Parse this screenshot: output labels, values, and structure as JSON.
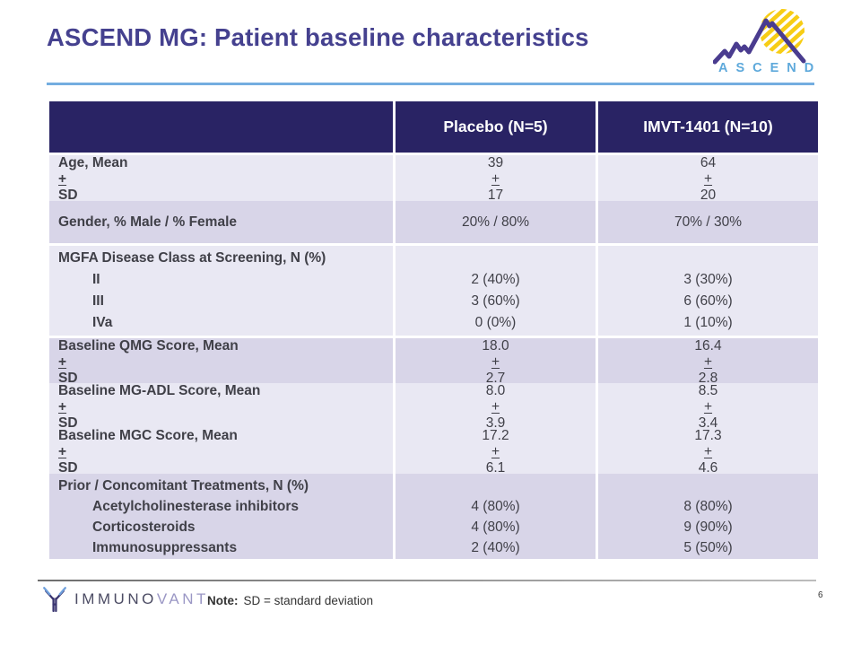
{
  "slide": {
    "title": "ASCEND MG: Patient baseline characteristics",
    "page_number": "6",
    "note_label": "Note:",
    "note_text": "SD = standard deviation"
  },
  "ascend_logo": {
    "text": "ASCEND"
  },
  "immunovant_logo": {
    "part1": "IMMUNO",
    "part2": "VANT"
  },
  "table": {
    "columns": [
      "",
      "Placebo (N=5)",
      "IMVT-1401 (N=10)"
    ],
    "rows": [
      {
        "label": "Age, Mean ± SD",
        "placebo": "39 ± 17",
        "imvt": "64 ± 20"
      },
      {
        "label": "Gender, % Male / % Female",
        "placebo": "20% / 80%",
        "imvt": "70% / 30%"
      },
      {
        "label": "MGFA Disease Class at Screening, N (%)",
        "sub": [
          {
            "label": "II",
            "placebo": "2 (40%)",
            "imvt": "3 (30%)"
          },
          {
            "label": "III",
            "placebo": "3 (60%)",
            "imvt": "6 (60%)"
          },
          {
            "label": "IVa",
            "placebo": "0 (0%)",
            "imvt": "1 (10%)"
          }
        ]
      },
      {
        "label": "Baseline QMG Score, Mean ± SD",
        "placebo": "18.0 ± 2.7",
        "imvt": "16.4 ± 2.8"
      },
      {
        "label": "Baseline MG-ADL Score, Mean ± SD",
        "placebo": "8.0 ± 3.9",
        "imvt": "8.5 ± 3.4"
      },
      {
        "label": "Baseline MGC Score, Mean ± SD",
        "placebo": "17.2 ± 6.1",
        "imvt": "17.3 ± 4.6"
      },
      {
        "label": "Prior / Concomitant Treatments, N (%)",
        "sub": [
          {
            "label": "Acetylcholinesterase inhibitors",
            "placebo": "4 (80%)",
            "imvt": "8 (80%)"
          },
          {
            "label": "Corticosteroids",
            "placebo": "4 (80%)",
            "imvt": "9 (90%)"
          },
          {
            "label": "Immunosuppressants",
            "placebo": "2 (40%)",
            "imvt": "5 (50%)"
          }
        ]
      }
    ]
  },
  "colors": {
    "title_indigo": "#45418F",
    "rule_blue": "#73ADE0",
    "header_navy": "#292364",
    "row_light": "#E9E8F3",
    "row_dark": "#D8D5E8",
    "text_dark": "#404048",
    "ascend_blue": "#5EA9DB",
    "mountain_purple": "#4A3C8F",
    "sun_yellow": "#F7CD15",
    "immunovant_dark": "#4C4C64",
    "immunovant_light": "#9B97C5"
  }
}
